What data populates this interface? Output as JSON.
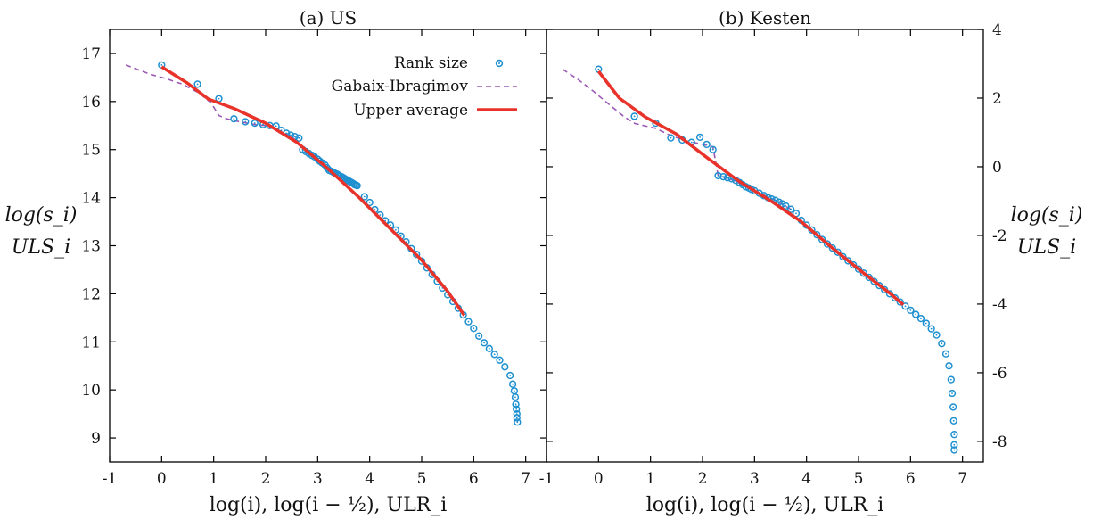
{
  "colors": {
    "rank": "#1e90d0",
    "gabaix": "#9b59b6",
    "upper": "#e8322a"
  },
  "shared_axis": {
    "ylabel_lines": [
      "log(s_i)",
      "ULS_i"
    ],
    "xlabel": "log(i), log(i − ½), ULR_i",
    "xticks": [
      "-1",
      "0",
      "1",
      "2",
      "3",
      "4",
      "5",
      "6",
      "7"
    ]
  },
  "legend": {
    "items": [
      {
        "label": "Rank size"
      },
      {
        "label": "Gabaix-Ibragimov"
      },
      {
        "label": "Upper average"
      }
    ]
  },
  "chart_data": [
    {
      "type": "scatter",
      "title": "(a) US",
      "xlabel": "log(i), log(i − ½), ULR_i",
      "ylabel": "log(s_i) / ULS_i",
      "xlim": [
        -1,
        7.4
      ],
      "ylim": [
        8.5,
        17.5
      ],
      "xticks": [
        -1,
        0,
        1,
        2,
        3,
        4,
        5,
        6,
        7
      ],
      "yticks": [
        9,
        10,
        11,
        12,
        13,
        14,
        15,
        16,
        17
      ],
      "ytick_side": "left",
      "grid": false,
      "legend_position": "top-right",
      "series": [
        {
          "name": "Rank size",
          "style": "circles",
          "points": [
            [
              0,
              16.76
            ],
            [
              0.69,
              16.36
            ],
            [
              1.1,
              16.06
            ],
            [
              1.39,
              15.64
            ],
            [
              1.61,
              15.58
            ],
            [
              1.79,
              15.55
            ],
            [
              1.95,
              15.52
            ],
            [
              2.08,
              15.5
            ],
            [
              2.2,
              15.49
            ],
            [
              2.3,
              15.4
            ],
            [
              2.4,
              15.34
            ],
            [
              2.48,
              15.3
            ],
            [
              2.56,
              15.27
            ],
            [
              2.64,
              15.24
            ],
            [
              2.71,
              15.0
            ],
            [
              2.77,
              14.96
            ],
            [
              2.83,
              14.92
            ],
            [
              2.89,
              14.88
            ],
            [
              2.94,
              14.85
            ],
            [
              3.0,
              14.8
            ],
            [
              3.04,
              14.76
            ],
            [
              3.09,
              14.72
            ],
            [
              3.14,
              14.68
            ],
            [
              3.18,
              14.62
            ],
            [
              3.22,
              14.57
            ],
            [
              3.26,
              14.55
            ],
            [
              3.3,
              14.53
            ],
            [
              3.33,
              14.51
            ],
            [
              3.37,
              14.49
            ],
            [
              3.4,
              14.47
            ],
            [
              3.43,
              14.45
            ],
            [
              3.47,
              14.43
            ],
            [
              3.5,
              14.41
            ],
            [
              3.53,
              14.39
            ],
            [
              3.56,
              14.37
            ],
            [
              3.58,
              14.36
            ],
            [
              3.61,
              14.34
            ],
            [
              3.64,
              14.32
            ],
            [
              3.66,
              14.31
            ],
            [
              3.69,
              14.29
            ],
            [
              3.71,
              14.27
            ],
            [
              3.74,
              14.26
            ],
            [
              3.76,
              14.25
            ],
            [
              3.9,
              14.02
            ],
            [
              4.0,
              13.9
            ],
            [
              4.1,
              13.75
            ],
            [
              4.2,
              13.64
            ],
            [
              4.3,
              13.52
            ],
            [
              4.4,
              13.43
            ],
            [
              4.5,
              13.33
            ],
            [
              4.6,
              13.2
            ],
            [
              4.7,
              13.08
            ],
            [
              4.8,
              12.94
            ],
            [
              4.9,
              12.82
            ],
            [
              5.0,
              12.68
            ],
            [
              5.1,
              12.54
            ],
            [
              5.2,
              12.4
            ],
            [
              5.3,
              12.26
            ],
            [
              5.4,
              12.12
            ],
            [
              5.5,
              11.98
            ],
            [
              5.6,
              11.84
            ],
            [
              5.7,
              11.7
            ],
            [
              5.8,
              11.56
            ],
            [
              5.9,
              11.42
            ],
            [
              6.0,
              11.28
            ],
            [
              6.1,
              11.12
            ],
            [
              6.2,
              10.98
            ],
            [
              6.3,
              10.86
            ],
            [
              6.4,
              10.74
            ],
            [
              6.5,
              10.62
            ],
            [
              6.6,
              10.48
            ],
            [
              6.7,
              10.3
            ],
            [
              6.75,
              10.12
            ],
            [
              6.78,
              9.98
            ],
            [
              6.8,
              9.85
            ],
            [
              6.81,
              9.7
            ],
            [
              6.82,
              9.6
            ],
            [
              6.83,
              9.5
            ],
            [
              6.83,
              9.42
            ],
            [
              6.84,
              9.33
            ]
          ]
        },
        {
          "name": "Gabaix-Ibragimov",
          "style": "dashed",
          "points": [
            [
              -0.69,
              16.76
            ],
            [
              -0.4,
              16.64
            ],
            [
              -0.2,
              16.56
            ],
            [
              0.1,
              16.47
            ],
            [
              0.4,
              16.36
            ],
            [
              0.7,
              16.19
            ],
            [
              0.95,
              15.97
            ],
            [
              1.1,
              15.71
            ],
            [
              1.25,
              15.64
            ],
            [
              1.5,
              15.58
            ],
            [
              1.8,
              15.52
            ],
            [
              2.0,
              15.5
            ],
            [
              2.2,
              15.43
            ],
            [
              2.5,
              15.27
            ],
            [
              2.8,
              14.97
            ],
            [
              3.1,
              14.72
            ],
            [
              3.4,
              14.47
            ],
            [
              3.76,
              14.22
            ]
          ]
        },
        {
          "name": "Upper average",
          "style": "solid",
          "points": [
            [
              0,
              16.72
            ],
            [
              0.5,
              16.38
            ],
            [
              0.9,
              16.05
            ],
            [
              1.4,
              15.85
            ],
            [
              2.0,
              15.55
            ],
            [
              2.6,
              15.15
            ],
            [
              3.2,
              14.6
            ],
            [
              3.8,
              14.0
            ],
            [
              4.4,
              13.35
            ],
            [
              5.0,
              12.7
            ],
            [
              5.5,
              12.05
            ],
            [
              5.82,
              11.55
            ]
          ]
        }
      ]
    },
    {
      "type": "scatter",
      "title": "(b) Kesten",
      "xlabel": "log(i), log(i − ½), ULR_i",
      "ylabel": "log(s_i) / ULS_i",
      "xlim": [
        -1,
        7.4
      ],
      "ylim": [
        -8.6,
        4.0
      ],
      "xticks": [
        -1,
        0,
        1,
        2,
        3,
        4,
        5,
        6,
        7
      ],
      "yticks": [
        -8,
        -6,
        -4,
        -2,
        0,
        2,
        4
      ],
      "ytick_side": "right",
      "grid": false,
      "series": [
        {
          "name": "Rank size",
          "style": "circles",
          "points": [
            [
              0,
              2.84
            ],
            [
              0.69,
              1.47
            ],
            [
              1.1,
              1.27
            ],
            [
              1.39,
              0.84
            ],
            [
              1.61,
              0.78
            ],
            [
              1.79,
              0.71
            ],
            [
              1.95,
              0.86
            ],
            [
              2.08,
              0.65
            ],
            [
              2.2,
              0.5
            ],
            [
              2.3,
              -0.26
            ],
            [
              2.4,
              -0.29
            ],
            [
              2.48,
              -0.32
            ],
            [
              2.56,
              -0.35
            ],
            [
              2.64,
              -0.4
            ],
            [
              2.71,
              -0.46
            ],
            [
              2.77,
              -0.52
            ],
            [
              2.83,
              -0.58
            ],
            [
              2.89,
              -0.62
            ],
            [
              2.94,
              -0.66
            ],
            [
              3.0,
              -0.7
            ],
            [
              3.09,
              -0.77
            ],
            [
              3.18,
              -0.84
            ],
            [
              3.26,
              -0.9
            ],
            [
              3.33,
              -0.94
            ],
            [
              3.4,
              -0.98
            ],
            [
              3.47,
              -1.03
            ],
            [
              3.53,
              -1.08
            ],
            [
              3.6,
              -1.14
            ],
            [
              3.7,
              -1.24
            ],
            [
              3.8,
              -1.36
            ],
            [
              3.9,
              -1.56
            ],
            [
              4.0,
              -1.7
            ],
            [
              4.1,
              -1.84
            ],
            [
              4.2,
              -1.98
            ],
            [
              4.3,
              -2.12
            ],
            [
              4.4,
              -2.25
            ],
            [
              4.5,
              -2.37
            ],
            [
              4.6,
              -2.49
            ],
            [
              4.7,
              -2.62
            ],
            [
              4.8,
              -2.74
            ],
            [
              4.9,
              -2.86
            ],
            [
              5.0,
              -2.98
            ],
            [
              5.1,
              -3.1
            ],
            [
              5.2,
              -3.22
            ],
            [
              5.3,
              -3.34
            ],
            [
              5.4,
              -3.46
            ],
            [
              5.5,
              -3.58
            ],
            [
              5.6,
              -3.7
            ],
            [
              5.7,
              -3.82
            ],
            [
              5.8,
              -3.94
            ],
            [
              5.9,
              -4.06
            ],
            [
              6.0,
              -4.18
            ],
            [
              6.1,
              -4.3
            ],
            [
              6.2,
              -4.42
            ],
            [
              6.3,
              -4.56
            ],
            [
              6.4,
              -4.72
            ],
            [
              6.5,
              -4.9
            ],
            [
              6.6,
              -5.15
            ],
            [
              6.68,
              -5.45
            ],
            [
              6.74,
              -5.8
            ],
            [
              6.78,
              -6.2
            ],
            [
              6.8,
              -6.6
            ],
            [
              6.82,
              -7.0
            ],
            [
              6.83,
              -7.4
            ],
            [
              6.84,
              -7.8
            ],
            [
              6.84,
              -8.1
            ],
            [
              6.84,
              -8.25
            ]
          ]
        },
        {
          "name": "Gabaix-Ibragimov",
          "style": "dashed",
          "points": [
            [
              -0.69,
              2.84
            ],
            [
              -0.4,
              2.55
            ],
            [
              -0.1,
              2.2
            ],
            [
              0.2,
              1.82
            ],
            [
              0.5,
              1.45
            ],
            [
              0.7,
              1.26
            ],
            [
              1.1,
              1.12
            ],
            [
              1.4,
              0.9
            ],
            [
              1.7,
              0.75
            ],
            [
              2.0,
              0.65
            ],
            [
              2.2,
              0.58
            ],
            [
              2.3,
              -0.25
            ],
            [
              2.6,
              -0.4
            ],
            [
              3.0,
              -0.7
            ],
            [
              3.4,
              -0.98
            ],
            [
              3.7,
              -1.24
            ]
          ]
        },
        {
          "name": "Upper average",
          "style": "solid",
          "points": [
            [
              0,
              2.78
            ],
            [
              0.4,
              2.0
            ],
            [
              0.9,
              1.45
            ],
            [
              1.5,
              0.95
            ],
            [
              2.1,
              0.25
            ],
            [
              2.7,
              -0.42
            ],
            [
              3.3,
              -0.98
            ],
            [
              3.9,
              -1.6
            ],
            [
              4.5,
              -2.37
            ],
            [
              5.1,
              -3.1
            ],
            [
              5.6,
              -3.68
            ],
            [
              5.86,
              -4.02
            ]
          ]
        }
      ]
    }
  ]
}
